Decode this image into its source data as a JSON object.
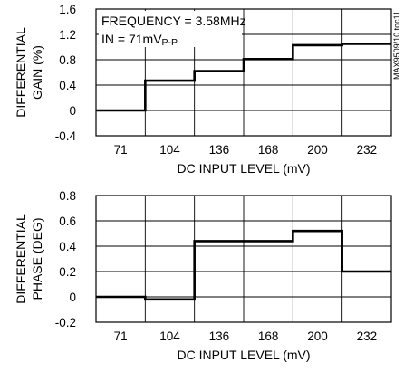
{
  "side_label": "MAX9509/10 toc11",
  "chart_data": [
    {
      "type": "line",
      "step": "post",
      "xlabel": "DC INPUT LEVEL (mV)",
      "ylabel_lines": [
        "DIFFERENTIAL",
        "GAIN (%)"
      ],
      "x_tick_labels": [
        "71",
        "104",
        "136",
        "168",
        "200",
        "232"
      ],
      "x_segments": [
        "71",
        "104",
        "136",
        "168",
        "200",
        "232"
      ],
      "y_ticks": [
        "1.6",
        "1.2",
        "0.8",
        "0.4",
        "0",
        "-0.4"
      ],
      "ylim": [
        -0.4,
        1.6
      ],
      "grid": true,
      "annotation_lines": [
        "FREQUENCY = 3.58MHz",
        "IN = 71mV"
      ],
      "annotation_sub": "P-P",
      "series": [
        {
          "values": [
            0.0,
            0.47,
            0.62,
            0.81,
            1.03,
            1.05
          ]
        }
      ]
    },
    {
      "type": "line",
      "step": "post",
      "xlabel": "DC INPUT LEVEL (mV)",
      "ylabel_lines": [
        "DIFFERENTIAL",
        "PHASE (DEG)"
      ],
      "x_tick_labels": [
        "71",
        "104",
        "136",
        "168",
        "200",
        "232"
      ],
      "x_segments": [
        "71",
        "104",
        "136",
        "168",
        "200",
        "232"
      ],
      "y_ticks": [
        "0.8",
        "0.6",
        "0.4",
        "0.2",
        "0",
        "-0.2"
      ],
      "ylim": [
        -0.2,
        0.8
      ],
      "grid": true,
      "series": [
        {
          "values": [
            0.0,
            -0.02,
            0.44,
            0.44,
            0.52,
            0.2
          ]
        }
      ]
    }
  ]
}
